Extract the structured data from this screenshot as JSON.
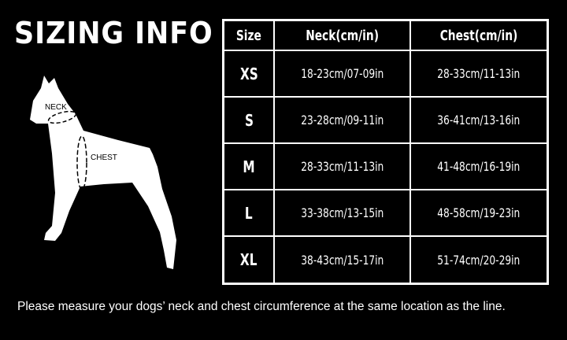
{
  "title": "SIZING INFO",
  "diagram": {
    "neck_label": "NECK",
    "chest_label": "CHEST"
  },
  "table": {
    "headers": [
      "Size",
      "Neck(cm/in)",
      "Chest(cm/in)"
    ],
    "rows": [
      {
        "size": "XS",
        "neck": "18-23cm/07-09in",
        "chest": "28-33cm/11-13in"
      },
      {
        "size": "S",
        "neck": "23-28cm/09-11in",
        "chest": "36-41cm/13-16in"
      },
      {
        "size": "M",
        "neck": "28-33cm/11-13in",
        "chest": "41-48cm/16-19in"
      },
      {
        "size": "L",
        "neck": "33-38cm/13-15in",
        "chest": "48-58cm/19-23in"
      },
      {
        "size": "XL",
        "neck": "38-43cm/15-17in",
        "chest": "51-74cm/20-29in"
      }
    ]
  },
  "note": "Please measure your dogs’  neck and chest circumference at the same location as the line."
}
